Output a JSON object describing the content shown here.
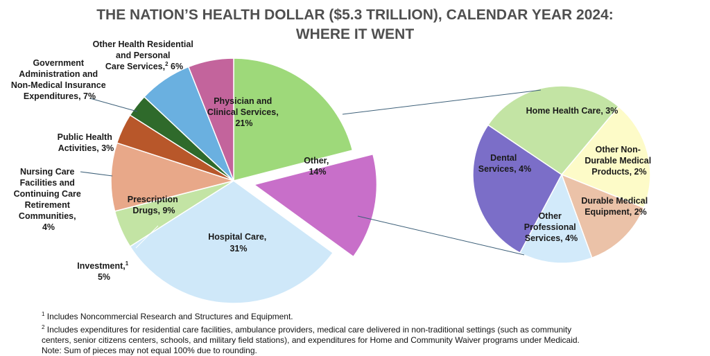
{
  "title_line1": "THE NATION’S HEALTH DOLLAR ($5.3 TRILLION), CALENDAR YEAR 2024:",
  "title_line2": "WHERE IT WENT",
  "chart_data": {
    "type": "pie",
    "title": "THE NATION’S HEALTH DOLLAR ($5.3 TRILLION), CALENDAR YEAR 2024: WHERE IT WENT",
    "total": "$5.3 TRILLION",
    "main_pie": [
      {
        "name": "Physician and Clinical Services",
        "value": 21,
        "pct_label": "21%",
        "color": "#9ed97a",
        "exploded": false
      },
      {
        "name": "Other",
        "value": 14,
        "pct_label": "14%",
        "color": "#c86fc9",
        "exploded": true
      },
      {
        "name": "Hospital Care",
        "value": 31,
        "pct_label": "31%",
        "color": "#cfe8f9",
        "exploded": false
      },
      {
        "name": "Investment",
        "value": 5,
        "pct_label": "5%",
        "color": "#c3e4a4",
        "exploded": false
      },
      {
        "name": "Prescription Drugs",
        "value": 9,
        "pct_label": "9%",
        "color": "#e8a889",
        "exploded": false
      },
      {
        "name": "Nursing Care Facilities and Continuing Care Retirement Communities",
        "value": 4,
        "pct_label": "4%",
        "color": "#b8572a",
        "exploded": false
      },
      {
        "name": "Public Health Activities",
        "value": 3,
        "pct_label": "3%",
        "color": "#2f6a2b",
        "exploded": false
      },
      {
        "name": "Government Administration and Non-Medical Insurance Expenditures",
        "value": 7,
        "pct_label": "7%",
        "color": "#6ab0e0",
        "exploded": false
      },
      {
        "name": "Other Health Residential and Personal Care Services",
        "value": 6,
        "pct_label": "6%",
        "color": "#c3649c",
        "exploded": false
      }
    ],
    "breakdown_pie": {
      "parent": "Other",
      "slices": [
        {
          "name": "Home Health Care",
          "value": 3,
          "pct_label": "3%",
          "color": "#fdfbc8"
        },
        {
          "name": "Other Non-Durable Medical Products",
          "value": 2,
          "pct_label": "2%",
          "color": "#ebc2a8"
        },
        {
          "name": "Durable Medical Equipment",
          "value": 2,
          "pct_label": "2%",
          "color": "#d2eafa"
        },
        {
          "name": "Other Professional Services",
          "value": 4,
          "pct_label": "4%",
          "color": "#7b6ec8"
        },
        {
          "name": "Dental Services",
          "value": 4,
          "pct_label": "4%",
          "color": "#c3e4a4"
        }
      ]
    },
    "labels": {
      "physician_1": "Physician and",
      "physician_2": "Clinical Services,",
      "physician_3": "21%",
      "other_1": "Other,",
      "other_2": "14%",
      "hospital_1": "Hospital Care,",
      "hospital_2": "31%",
      "rx_1": "Prescription",
      "rx_2": "Drugs, 9%",
      "investment_1": "Investment,",
      "investment_sup": "1",
      "investment_2": "5%",
      "nursing_1": "Nursing Care",
      "nursing_2": "Facilities and",
      "nursing_3": "Continuing Care",
      "nursing_4": "Retirement",
      "nursing_5": "Communities,",
      "nursing_6": "4%",
      "public_1": "Public Health",
      "public_2": "Activities, 3%",
      "gov_1": "Government",
      "gov_2": "Administration and",
      "gov_3": "Non-Medical Insurance",
      "gov_4": "Expenditures, 7%",
      "ohr_1": "Other Health Residential",
      "ohr_2": "and Personal",
      "ohr_3a": "Care Services,",
      "ohr_sup": "2",
      "ohr_3b": "6%",
      "home_1": "Home Health Care, 3%",
      "ondm_1": "Other Non-",
      "ondm_2": "Durable Medical",
      "ondm_3": "Products, 2%",
      "dme_1": "Durable Medical",
      "dme_2": "Equipment, 2%",
      "ops_1": "Other",
      "ops_2": "Professional",
      "ops_3": "Services, 4%",
      "dental_1": "Dental",
      "dental_2": "Services, 4%"
    }
  },
  "notes": {
    "fn1_mark": "1",
    "fn1_text": "Includes Noncommercial Research and Structures and Equipment.",
    "fn2_mark": "2",
    "fn2_text_1": "Includes expenditures for residential care facilities, ambulance providers, medical care delivered in non-traditional settings (such as community",
    "fn2_text_2": "centers, senior citizens centers, schools, and military field stations), and expenditures for Home and Community Waiver programs under Medicaid.",
    "note": "Note: Sum of pieces may not equal 100% due to rounding."
  }
}
